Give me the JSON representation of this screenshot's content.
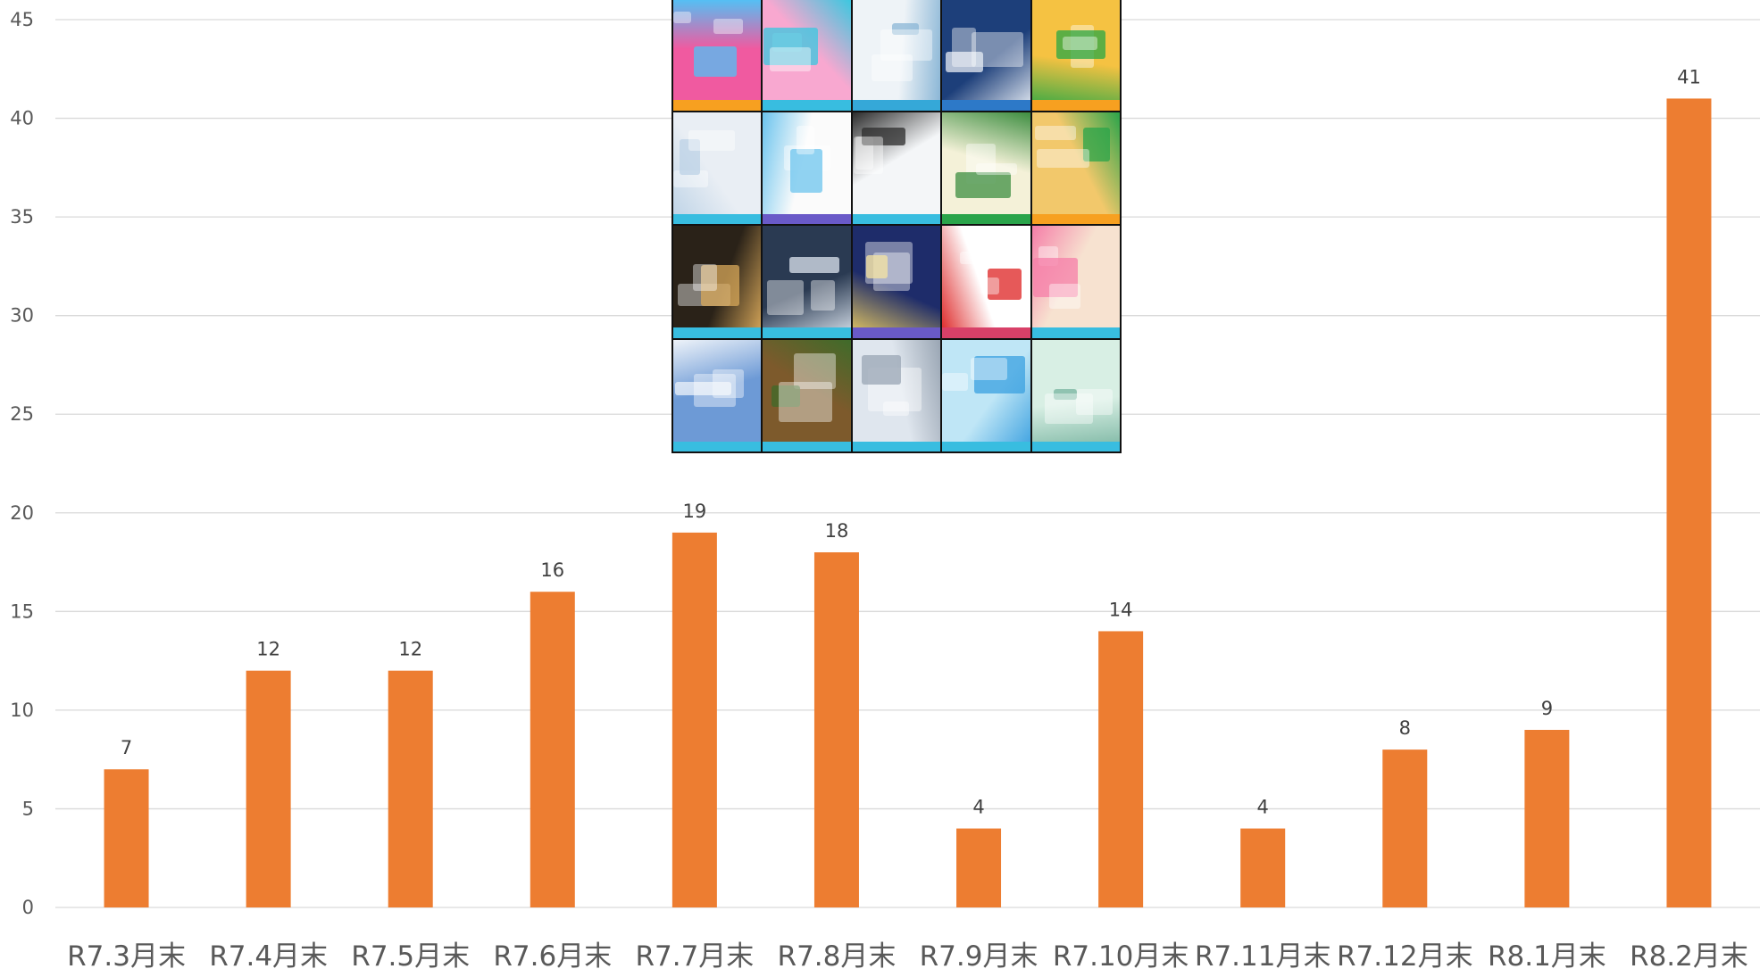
{
  "chart_data": {
    "type": "bar",
    "categories": [
      "R7.3月末",
      "R7.4月末",
      "R7.5月末",
      "R7.6月末",
      "R7.7月末",
      "R7.8月末",
      "R7.9月末",
      "R7.10月末",
      "R7.11月末",
      "R7.12月末",
      "R8.1月末",
      "R8.2月末"
    ],
    "values": [
      7,
      12,
      12,
      16,
      19,
      18,
      4,
      14,
      4,
      8,
      9,
      41
    ],
    "title": "",
    "xlabel": "",
    "ylabel": "",
    "ylim": [
      0,
      45
    ],
    "yticks": [
      0,
      5,
      10,
      15,
      20,
      25,
      30,
      35,
      40,
      45
    ],
    "grid": true,
    "data_labels": true,
    "bar_color": "#ed7d31",
    "legend": "none"
  },
  "inset_image": {
    "description_icon": "poster-collage-image",
    "rows": 4,
    "columns": 5
  }
}
